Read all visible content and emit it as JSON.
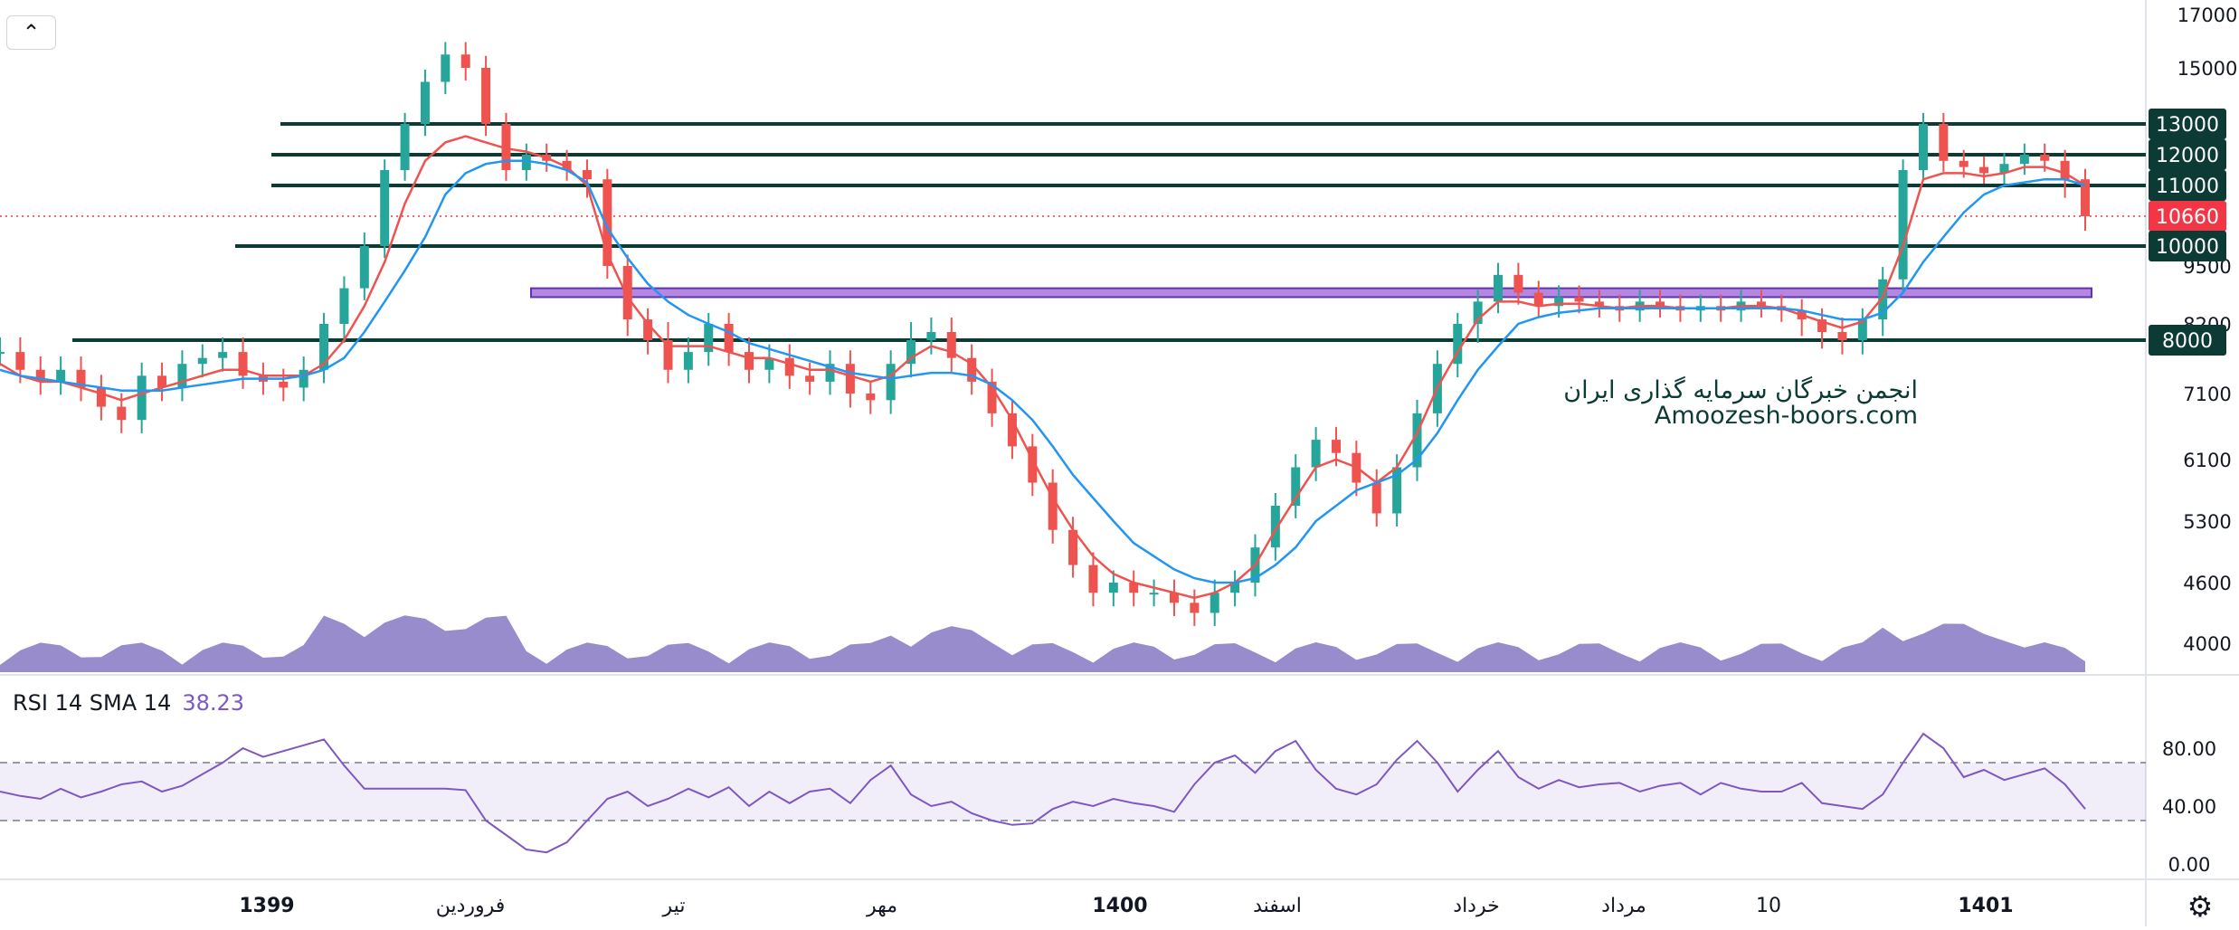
{
  "price_axis_ticks": [
    "17000",
    "15000",
    "9500",
    "8200",
    "7100",
    "6100",
    "5300",
    "4600",
    "4000"
  ],
  "level_labels": [
    {
      "text": "13000",
      "value": 13000,
      "bg": "#0c3b36",
      "fg": "#ffffff"
    },
    {
      "text": "12000",
      "value": 12000,
      "bg": "#0c3b36",
      "fg": "#ffffff"
    },
    {
      "text": "11000",
      "value": 11000,
      "bg": "#0c3b36",
      "fg": "#ffffff"
    },
    {
      "text": "10660",
      "value": 10660,
      "bg": "#f23645",
      "fg": "#ffffff"
    },
    {
      "text": "10000",
      "value": 10000,
      "bg": "#0c3b36",
      "fg": "#ffffff"
    },
    {
      "text": "8000",
      "value": 8000,
      "bg": "#0c3b36",
      "fg": "#ffffff"
    }
  ],
  "rsi_axis_ticks": [
    "80.00",
    "40.00",
    "0.00"
  ],
  "time_axis": [
    {
      "label": "1399",
      "bold": true
    },
    {
      "label": "فروردین",
      "bold": false
    },
    {
      "label": "تیر",
      "bold": false
    },
    {
      "label": "مهر",
      "bold": false
    },
    {
      "label": "1400",
      "bold": true
    },
    {
      "label": "اسفند",
      "bold": false
    },
    {
      "label": "خرداد",
      "bold": false
    },
    {
      "label": "مرداد",
      "bold": false
    },
    {
      "label": "10",
      "bold": false
    },
    {
      "label": "1401",
      "bold": true
    }
  ],
  "rsi_legend": {
    "name": "RSI 14 SMA 14",
    "value": "38.23"
  },
  "watermark": {
    "line1": "انجمن خبرگان سرمایه گذاری ایران",
    "line2": "Amoozesh-boors.com"
  },
  "icons": {
    "collapse": "chevron-up-icon",
    "settings": "gear-icon"
  },
  "colors": {
    "up": "#26a69a",
    "down": "#ef5350",
    "ema_fast": "#ef5350",
    "ema_slow": "#2196f3",
    "levels": "#0c3b36",
    "zone": "#9c5fd6",
    "volume": "#7e6fc1",
    "rsi": "#7e57c2"
  },
  "chart_data": [
    {
      "type": "candlestick",
      "ylim": [
        3700,
        17000
      ],
      "horizontal_levels": [
        13000,
        12000,
        11000,
        10000,
        8000
      ],
      "current_price": 10660,
      "resistance_zone": [
        8800,
        9000
      ],
      "series": [
        {
          "values": [
            7800,
            7500,
            7300,
            7500,
            7200,
            6900,
            6700,
            7400,
            7200,
            7600,
            7700,
            7800,
            7400,
            7300,
            7200,
            7500,
            8200,
            9000,
            10000,
            11500,
            13000,
            14500,
            15500,
            15000,
            13000,
            11500,
            12000,
            11800,
            11500,
            11200,
            9500,
            8300,
            8000,
            7500,
            7800,
            8200,
            7800,
            7500,
            7700,
            7400,
            7300,
            7600,
            7100,
            7000,
            7600,
            8000,
            8100,
            7700,
            7300,
            6800,
            6300,
            5800,
            5200,
            4800,
            4500,
            4600,
            4500,
            4500,
            4400,
            4300,
            4500,
            4600,
            5000,
            5500,
            6000,
            6400,
            6200,
            5800,
            5400,
            6000,
            6800,
            7600,
            8200,
            8700,
            9300,
            8900,
            8600,
            8800,
            8700,
            8600,
            8500,
            8700,
            8600,
            8500,
            8600,
            8500,
            8700,
            8600,
            8500,
            8300,
            8100,
            8000,
            8300,
            9200,
            11500,
            13000,
            11800,
            11600,
            11400,
            11700,
            12000,
            11800,
            11200,
            10660
          ]
        },
        {
          "values": [
            7600,
            7400,
            7300,
            7300,
            7200,
            7100,
            7000,
            7100,
            7200,
            7300,
            7400,
            7500,
            7500,
            7400,
            7400,
            7400,
            7600,
            8000,
            8600,
            9600,
            10800,
            11800,
            12400,
            12600,
            12400,
            12200,
            12100,
            11900,
            11600,
            11000,
            9800,
            8800,
            8200,
            7900,
            7900,
            7900,
            7800,
            7700,
            7700,
            7600,
            7500,
            7500,
            7400,
            7300,
            7400,
            7700,
            7900,
            7800,
            7600,
            7200,
            6700,
            6100,
            5600,
            5200,
            4900,
            4700,
            4600,
            4550,
            4500,
            4450,
            4500,
            4600,
            4800,
            5200,
            5600,
            6000,
            6100,
            6000,
            5800,
            6000,
            6500,
            7200,
            7800,
            8300,
            8700,
            8700,
            8600,
            8650,
            8650,
            8600,
            8550,
            8600,
            8600,
            8550,
            8550,
            8550,
            8600,
            8600,
            8550,
            8400,
            8250,
            8150,
            8250,
            8800,
            10000,
            11200,
            11400,
            11400,
            11300,
            11400,
            11600,
            11600,
            11400,
            11000
          ]
        },
        {
          "values": [
            7500,
            7400,
            7350,
            7300,
            7250,
            7200,
            7150,
            7150,
            7150,
            7200,
            7250,
            7300,
            7350,
            7350,
            7350,
            7400,
            7500,
            7700,
            8100,
            8700,
            9400,
            10200,
            10900,
            11400,
            11700,
            11800,
            11800,
            11700,
            11500,
            11100,
            10400,
            9700,
            9100,
            8700,
            8400,
            8200,
            8100,
            7950,
            7850,
            7750,
            7650,
            7550,
            7450,
            7400,
            7350,
            7400,
            7450,
            7450,
            7400,
            7250,
            7000,
            6700,
            6300,
            5900,
            5600,
            5300,
            5050,
            4900,
            4750,
            4650,
            4600,
            4600,
            4650,
            4800,
            5000,
            5300,
            5500,
            5700,
            5800,
            5900,
            6100,
            6500,
            7000,
            7500,
            7900,
            8200,
            8350,
            8450,
            8500,
            8550,
            8550,
            8550,
            8550,
            8550,
            8550,
            8550,
            8550,
            8550,
            8550,
            8500,
            8400,
            8300,
            8300,
            8450,
            8900,
            9600,
            10200,
            10700,
            10900,
            11000,
            11100,
            11200,
            11200,
            11000
          ]
        }
      ]
    },
    {
      "type": "line",
      "ylim": [
        0,
        100
      ],
      "bands": [
        30,
        70
      ],
      "series": [
        {
          "values": [
            50,
            47,
            45,
            52,
            46,
            50,
            55,
            57,
            50,
            54,
            62,
            70,
            80,
            74,
            78,
            82,
            86,
            68,
            52,
            52,
            52,
            52,
            52,
            51,
            30,
            20,
            10,
            8,
            15,
            30,
            45,
            50,
            40,
            45,
            52,
            46,
            53,
            40,
            50,
            42,
            50,
            52,
            42,
            58,
            68,
            48,
            40,
            43,
            35,
            30,
            27,
            28,
            38,
            43,
            40,
            45,
            42,
            40,
            36,
            55,
            70,
            75,
            63,
            78,
            85,
            65,
            52,
            48,
            55,
            72,
            85,
            70,
            50,
            65,
            78,
            60,
            52,
            58,
            53,
            55,
            56,
            50,
            54,
            56,
            48,
            56,
            52,
            50,
            50,
            56,
            42,
            40,
            38,
            48,
            70,
            90,
            80,
            60,
            65,
            58,
            62,
            66,
            55,
            38
          ]
        }
      ]
    }
  ]
}
